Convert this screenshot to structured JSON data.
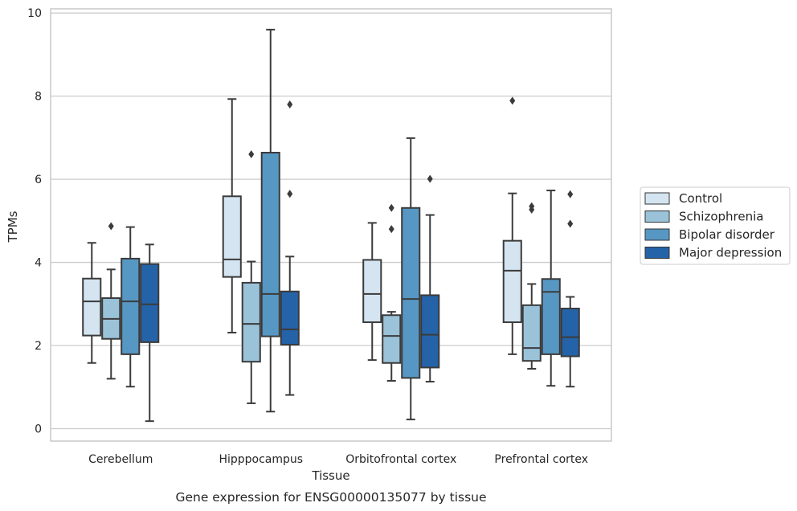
{
  "chart_data": {
    "type": "boxplot",
    "xlabel": "Tissue",
    "ylabel": "TPMs",
    "caption": "Gene expression for ENSG00000135077 by tissue",
    "ylim": [
      -0.3,
      10.1
    ],
    "yticks": [
      0,
      2,
      4,
      6,
      8,
      10
    ],
    "grid": "horizontal",
    "legend_position": "right",
    "categories": [
      "Cerebellum",
      "Hipppocampus",
      "Orbitofrontal cortex",
      "Prefrontal cortex"
    ],
    "series": [
      {
        "name": "Control",
        "color": "#d4e4f1",
        "boxes": [
          {
            "whislo": 1.58,
            "q1": 2.24,
            "med": 3.06,
            "q3": 3.61,
            "whishi": 4.47,
            "fliers": []
          },
          {
            "whislo": 2.31,
            "q1": 3.65,
            "med": 4.07,
            "q3": 5.59,
            "whishi": 7.93,
            "fliers": []
          },
          {
            "whislo": 1.65,
            "q1": 2.56,
            "med": 3.24,
            "q3": 4.06,
            "whishi": 4.95,
            "fliers": []
          },
          {
            "whislo": 1.79,
            "q1": 2.56,
            "med": 3.8,
            "q3": 4.52,
            "whishi": 5.66,
            "fliers": [
              7.89
            ]
          }
        ]
      },
      {
        "name": "Schizophrenia",
        "color": "#9ac3da",
        "boxes": [
          {
            "whislo": 1.2,
            "q1": 2.16,
            "med": 2.64,
            "q3": 3.14,
            "whishi": 3.83,
            "fliers": [
              4.87
            ]
          },
          {
            "whislo": 0.61,
            "q1": 1.61,
            "med": 2.52,
            "q3": 3.51,
            "whishi": 4.02,
            "fliers": [
              6.6
            ]
          },
          {
            "whislo": 1.15,
            "q1": 1.58,
            "med": 2.23,
            "q3": 2.73,
            "whishi": 2.81,
            "fliers": [
              4.8,
              5.31
            ]
          },
          {
            "whislo": 1.44,
            "q1": 1.63,
            "med": 1.94,
            "q3": 2.97,
            "whishi": 3.48,
            "fliers": [
              5.27,
              5.35
            ]
          }
        ]
      },
      {
        "name": "Bipolar disorder",
        "color": "#5797c3",
        "boxes": [
          {
            "whislo": 1.01,
            "q1": 1.79,
            "med": 3.06,
            "q3": 4.09,
            "whishi": 4.85,
            "fliers": []
          },
          {
            "whislo": 0.41,
            "q1": 2.22,
            "med": 3.24,
            "q3": 6.64,
            "whishi": 9.6,
            "fliers": []
          },
          {
            "whislo": 0.22,
            "q1": 1.22,
            "med": 3.12,
            "q3": 5.31,
            "whishi": 6.99,
            "fliers": []
          },
          {
            "whislo": 1.03,
            "q1": 1.79,
            "med": 3.29,
            "q3": 3.6,
            "whishi": 5.73,
            "fliers": []
          }
        ]
      },
      {
        "name": "Major depression",
        "color": "#2563a8",
        "boxes": [
          {
            "whislo": 0.18,
            "q1": 2.08,
            "med": 2.99,
            "q3": 3.96,
            "whishi": 4.43,
            "fliers": []
          },
          {
            "whislo": 0.81,
            "q1": 2.02,
            "med": 2.39,
            "q3": 3.3,
            "whishi": 4.14,
            "fliers": [
              5.65,
              7.8
            ]
          },
          {
            "whislo": 1.13,
            "q1": 1.47,
            "med": 2.26,
            "q3": 3.21,
            "whishi": 5.14,
            "fliers": [
              6.01
            ]
          },
          {
            "whislo": 1.01,
            "q1": 1.74,
            "med": 2.2,
            "q3": 2.89,
            "whishi": 3.17,
            "fliers": [
              4.93,
              5.64
            ]
          }
        ]
      }
    ]
  }
}
